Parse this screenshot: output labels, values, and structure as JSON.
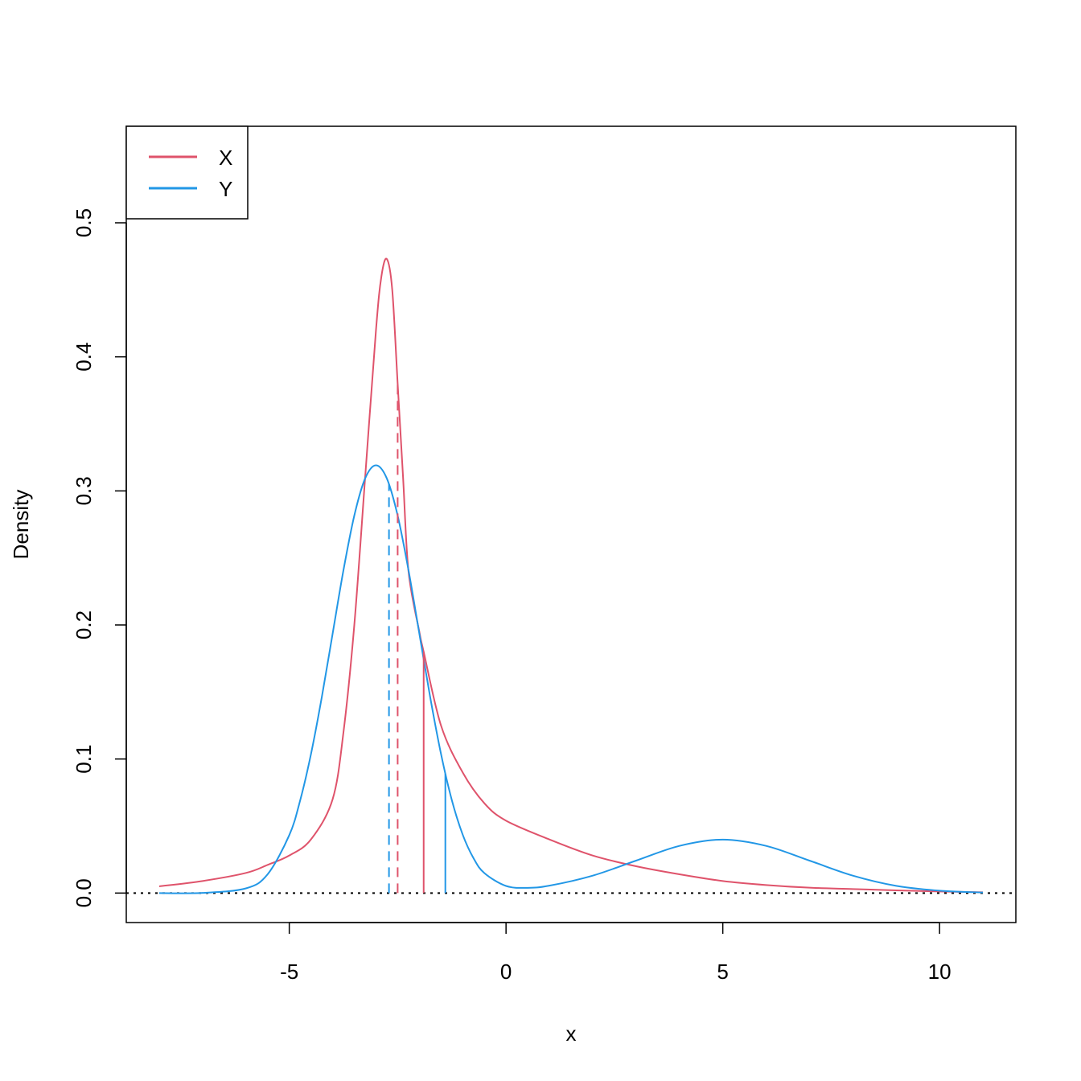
{
  "chart_data": {
    "type": "line",
    "title": "",
    "xlabel": "x",
    "ylabel": "Density",
    "xlim": [
      -8,
      11
    ],
    "ylim": [
      0,
      0.55
    ],
    "x_ticks": [
      -5,
      0,
      5,
      10
    ],
    "y_ticks": [
      0.0,
      0.1,
      0.2,
      0.3,
      0.4,
      0.5
    ],
    "x_tick_labels": [
      "-5",
      "0",
      "5",
      "10"
    ],
    "y_tick_labels": [
      "0.0",
      "0.1",
      "0.2",
      "0.3",
      "0.4",
      "0.5"
    ],
    "grid": false,
    "legend": {
      "placement": "top-left",
      "entries": [
        "X",
        "Y"
      ]
    },
    "series": [
      {
        "name": "X",
        "color": "#DF536B",
        "x": [
          -8,
          -7,
          -6,
          -5.5,
          -5,
          -4.5,
          -4,
          -3.75,
          -3.5,
          -3.25,
          -3,
          -2.875,
          -2.75,
          -2.625,
          -2.5,
          -2.375,
          -2.25,
          -2,
          -1.9,
          -1.5,
          -1,
          -0.5,
          0,
          1,
          2,
          3,
          4,
          5,
          6,
          7,
          8,
          9,
          10,
          11
        ],
        "y": [
          0.005,
          0.009,
          0.015,
          0.021,
          0.028,
          0.04,
          0.07,
          0.12,
          0.2,
          0.31,
          0.42,
          0.46,
          0.473,
          0.45,
          0.38,
          0.31,
          0.24,
          0.195,
          0.18,
          0.125,
          0.09,
          0.067,
          0.054,
          0.04,
          0.028,
          0.02,
          0.014,
          0.009,
          0.006,
          0.004,
          0.003,
          0.002,
          0.0012,
          0.0006
        ]
      },
      {
        "name": "Y",
        "color": "#2297E6",
        "x": [
          -8,
          -7,
          -6,
          -5.5,
          -5,
          -4.75,
          -4.5,
          -4.25,
          -4,
          -3.75,
          -3.5,
          -3.25,
          -3,
          -2.75,
          -2.5,
          -2.25,
          -2,
          -1.75,
          -1.5,
          -1.25,
          -1,
          -0.75,
          -0.5,
          0,
          0.5,
          1,
          2,
          3,
          4,
          5,
          6,
          7,
          8,
          9,
          10,
          11
        ],
        "y": [
          0,
          0.0001,
          0.0035,
          0.014,
          0.0432,
          0.069,
          0.1036,
          0.1461,
          0.1935,
          0.2409,
          0.2816,
          0.3093,
          0.3191,
          0.3093,
          0.2816,
          0.2409,
          0.1936,
          0.1462,
          0.1038,
          0.0693,
          0.0436,
          0.026,
          0.0149,
          0.0053,
          0.0039,
          0.0055,
          0.013,
          0.0242,
          0.0352,
          0.0399,
          0.0352,
          0.0242,
          0.013,
          0.0054,
          0.0018,
          0.0004
        ]
      }
    ],
    "vertical_lines": [
      {
        "series": "X",
        "style": "solid",
        "x": -1.9,
        "y_top": 0.18
      },
      {
        "series": "X",
        "style": "dashed",
        "x": -2.5,
        "y_top": 0.38
      },
      {
        "series": "Y",
        "style": "solid",
        "x": -1.4,
        "y_top": 0.089
      },
      {
        "series": "Y",
        "style": "dashed",
        "x": -2.7,
        "y_top": 0.305
      }
    ],
    "reference_line": {
      "y": 0,
      "style": "dotted",
      "color": "#000000"
    }
  }
}
